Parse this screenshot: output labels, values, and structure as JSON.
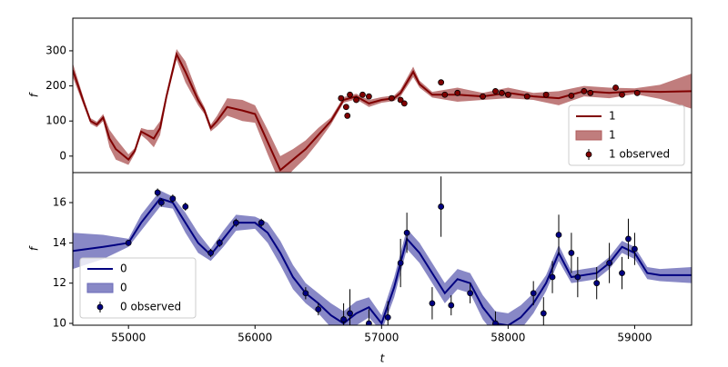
{
  "chart_data": [
    {
      "type": "line",
      "ylabel": "f",
      "xlim": [
        54560,
        59450
      ],
      "ylim": [
        -47,
        393
      ],
      "yticks": [
        0,
        100,
        200,
        300
      ],
      "legend": "lower right",
      "series": [
        {
          "name": "1",
          "kind": "line",
          "color": "#800000",
          "x": [
            54560,
            54650,
            54700,
            54750,
            54800,
            54850,
            54900,
            55000,
            55050,
            55100,
            55150,
            55200,
            55250,
            55300,
            55380,
            55450,
            55550,
            55600,
            55650,
            55700,
            55780,
            55900,
            56000,
            56100,
            56200,
            56300,
            56400,
            56500,
            56600,
            56700,
            56800,
            56900,
            57000,
            57100,
            57150,
            57250,
            57300,
            57400,
            57600,
            57800,
            58000,
            58200,
            58400,
            58600,
            58800,
            59000,
            59200,
            59450
          ],
          "values": [
            245,
            150,
            100,
            90,
            110,
            50,
            20,
            -10,
            15,
            70,
            60,
            50,
            80,
            170,
            290,
            240,
            160,
            130,
            80,
            100,
            140,
            130,
            120,
            40,
            -40,
            -10,
            20,
            60,
            100,
            160,
            170,
            150,
            160,
            165,
            180,
            240,
            205,
            175,
            175,
            170,
            180,
            170,
            165,
            185,
            180,
            185,
            183,
            185
          ]
        },
        {
          "name": "1",
          "kind": "band",
          "color": "#b05c5c",
          "errors": [
            20,
            10,
            8,
            8,
            10,
            25,
            30,
            15,
            8,
            10,
            15,
            25,
            20,
            10,
            15,
            30,
            15,
            10,
            10,
            15,
            25,
            30,
            25,
            35,
            40,
            30,
            25,
            20,
            10,
            8,
            8,
            10,
            8,
            8,
            10,
            15,
            10,
            8,
            20,
            10,
            15,
            10,
            20,
            15,
            15,
            8,
            20,
            50
          ]
        },
        {
          "name": "1 observed",
          "kind": "observed",
          "color": "#800000",
          "x": [
            56680,
            56720,
            56730,
            56750,
            56800,
            56850,
            56900,
            57080,
            57150,
            57180,
            57470,
            57500,
            57600,
            57800,
            57900,
            57950,
            58000,
            58150,
            58300,
            58500,
            58600,
            58650,
            58850,
            58900,
            59020
          ],
          "values": [
            165,
            140,
            115,
            175,
            160,
            175,
            170,
            165,
            160,
            150,
            210,
            175,
            180,
            170,
            185,
            180,
            175,
            170,
            175,
            172,
            185,
            180,
            195,
            175,
            180
          ],
          "errors": [
            8,
            8,
            8,
            8,
            8,
            8,
            8,
            8,
            8,
            8,
            8,
            8,
            8,
            8,
            8,
            8,
            8,
            8,
            8,
            8,
            8,
            8,
            8,
            8,
            8
          ]
        }
      ]
    },
    {
      "type": "line",
      "ylabel": "f",
      "xlabel": "t",
      "xlim": [
        54560,
        59450
      ],
      "ylim": [
        9.91,
        17.49
      ],
      "xticks": [
        55000,
        56000,
        57000,
        58000,
        59000
      ],
      "yticks": [
        10,
        12,
        14,
        16
      ],
      "legend": "lower left",
      "series": [
        {
          "name": "0",
          "kind": "line",
          "color": "#000080",
          "x": [
            54560,
            54800,
            55000,
            55100,
            55250,
            55350,
            55450,
            55550,
            55650,
            55750,
            55850,
            56000,
            56100,
            56200,
            56300,
            56400,
            56500,
            56600,
            56700,
            56800,
            56900,
            57000,
            57100,
            57200,
            57300,
            57400,
            57500,
            57600,
            57700,
            57800,
            57900,
            58000,
            58100,
            58200,
            58300,
            58400,
            58500,
            58600,
            58700,
            58800,
            58900,
            59000,
            59100,
            59200,
            59450
          ],
          "values": [
            13.6,
            13.8,
            14.0,
            15.0,
            16.2,
            16.0,
            15.0,
            14.0,
            13.4,
            14.2,
            15.0,
            15.0,
            14.5,
            13.5,
            12.3,
            11.5,
            11.0,
            10.4,
            10.0,
            10.5,
            10.8,
            10.0,
            11.8,
            14.2,
            13.5,
            12.5,
            11.5,
            12.2,
            12.0,
            10.8,
            10.0,
            9.9,
            10.3,
            11.0,
            12.0,
            13.5,
            12.3,
            12.4,
            12.5,
            13.0,
            13.8,
            13.5,
            12.5,
            12.4,
            12.4
          ]
        },
        {
          "name": "0",
          "kind": "band",
          "color": "#6a6ab8",
          "errors": [
            0.9,
            0.6,
            0.2,
            0.4,
            0.4,
            0.3,
            0.5,
            0.5,
            0.3,
            0.4,
            0.4,
            0.3,
            0.5,
            0.6,
            0.6,
            0.5,
            0.5,
            0.6,
            0.6,
            0.6,
            0.5,
            0.4,
            0.5,
            0.5,
            0.5,
            0.5,
            0.5,
            0.5,
            0.5,
            0.6,
            0.6,
            0.6,
            0.6,
            0.5,
            0.4,
            0.4,
            0.3,
            0.3,
            0.3,
            0.3,
            0.3,
            0.3,
            0.3,
            0.3,
            0.4
          ]
        },
        {
          "name": "0 observed",
          "kind": "observed",
          "color": "#000080",
          "x": [
            55000,
            55230,
            55260,
            55350,
            55450,
            55650,
            55720,
            55850,
            56050,
            56400,
            56500,
            56700,
            56750,
            56900,
            57050,
            57150,
            57200,
            57400,
            57470,
            57550,
            57700,
            57900,
            58200,
            58280,
            58350,
            58400,
            58500,
            58550,
            58700,
            58800,
            58900,
            58950,
            59000
          ],
          "values": [
            14.0,
            16.5,
            16.0,
            16.2,
            15.8,
            13.5,
            14.0,
            15.0,
            15.0,
            11.5,
            10.7,
            10.2,
            10.5,
            10.0,
            10.3,
            13.0,
            14.5,
            11.0,
            15.8,
            10.9,
            11.5,
            10.0,
            11.5,
            10.5,
            12.3,
            14.4,
            13.5,
            12.3,
            12.0,
            13.0,
            12.5,
            14.2,
            13.7
          ],
          "errors": [
            0.1,
            0.2,
            0.2,
            0.2,
            0.2,
            0.2,
            0.2,
            0.2,
            0.2,
            0.3,
            0.3,
            0.8,
            1.2,
            0.7,
            0.8,
            1.2,
            1.0,
            0.8,
            1.5,
            0.5,
            0.5,
            0.6,
            0.6,
            0.8,
            0.8,
            1.0,
            1.0,
            1.0,
            0.8,
            1.0,
            0.8,
            1.0,
            0.8
          ]
        }
      ]
    }
  ]
}
